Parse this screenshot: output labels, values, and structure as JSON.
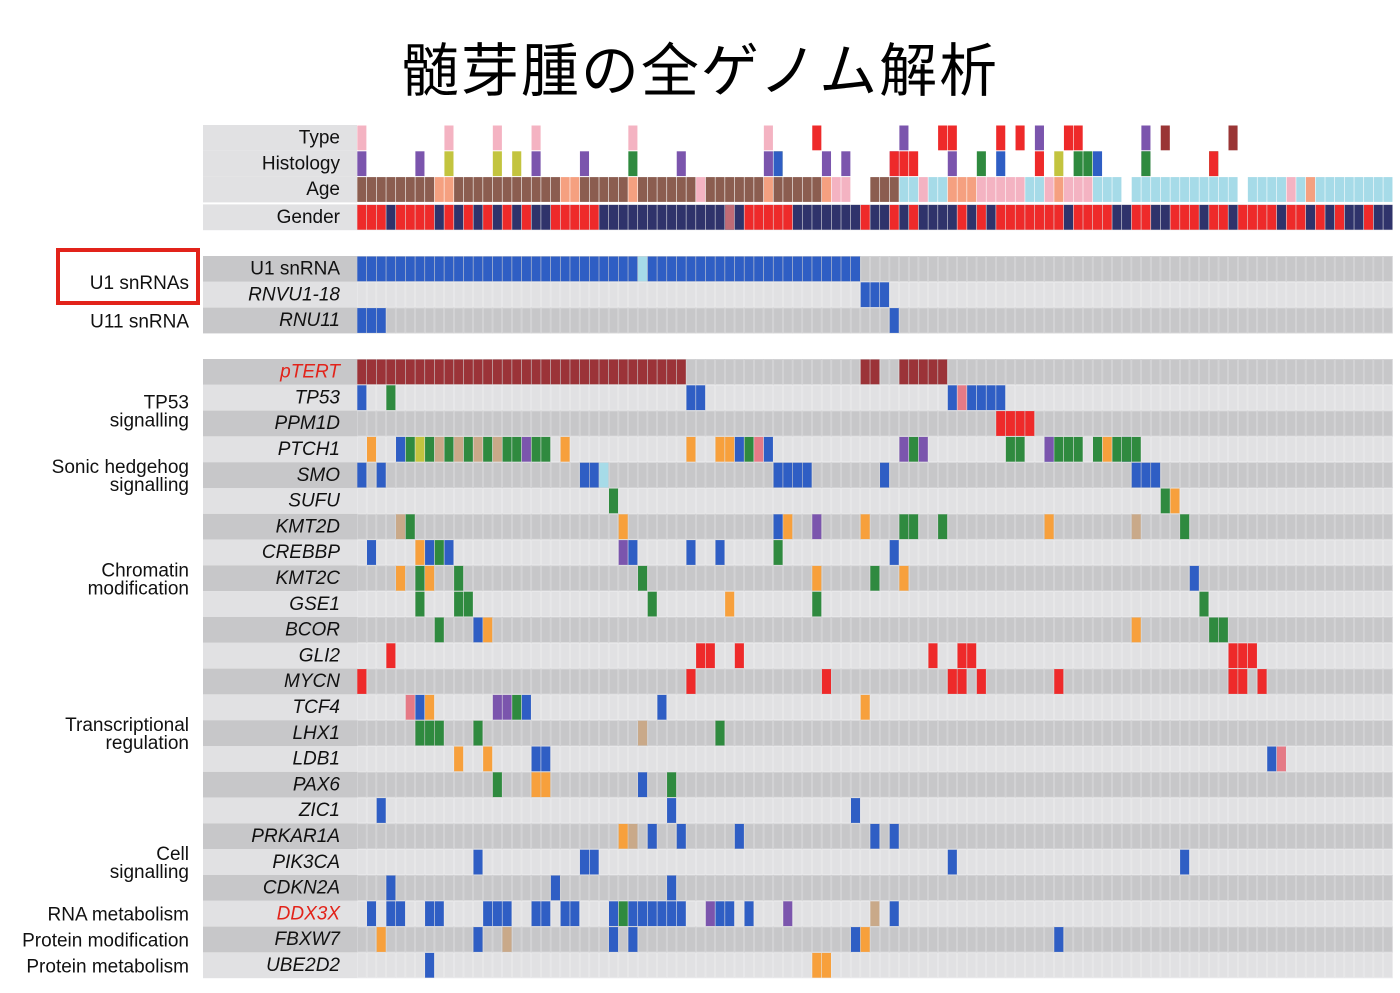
{
  "title": "髄芽腫の全ゲノム解析",
  "chart_data": {
    "type": "heatmap",
    "subtype": "oncoprint",
    "n_samples": 107,
    "clinical_tracks": [
      {
        "label": "Type"
      },
      {
        "label": "Histology"
      },
      {
        "label": "Age"
      },
      {
        "label": "Gender"
      }
    ],
    "sections": [
      {
        "groups": [
          {
            "label": "U1 snRNAs",
            "highlight": true,
            "rows": [
              "U1 snRNA",
              "RNVU1-18"
            ]
          },
          {
            "label": "U11 snRNA",
            "rows": [
              "RNU11"
            ]
          }
        ]
      },
      {
        "groups": [
          {
            "label": "",
            "rows": [
              "pTERT"
            ]
          },
          {
            "label": "TP53 signalling",
            "rows": [
              "TP53",
              "PPM1D"
            ]
          },
          {
            "label": "Sonic hedgehog signalling",
            "rows": [
              "PTCH1",
              "SMO",
              "SUFU"
            ]
          },
          {
            "label": "Chromatin modification",
            "rows": [
              "KMT2D",
              "CREBBP",
              "KMT2C",
              "GSE1",
              "BCOR"
            ]
          },
          {
            "label": "Transcriptional regulation",
            "rows": [
              "GLI2",
              "MYCN",
              "TCF4",
              "LHX1",
              "LDB1",
              "PAX6",
              "ZIC1"
            ]
          },
          {
            "label": "Cell signalling",
            "rows": [
              "PRKAR1A",
              "PIK3CA",
              "CDKN2A"
            ]
          },
          {
            "label": "RNA metabolism",
            "rows": [
              "DDX3X"
            ]
          },
          {
            "label": "Protein modification",
            "rows": [
              "FBXW7"
            ]
          },
          {
            "label": "Protein metabolism",
            "rows": [
              "UBE2D2"
            ]
          }
        ]
      }
    ],
    "row_labels": {
      "U1 snRNA": "U1 snRNA",
      "RNVU1-18": "RNVU1-18",
      "RNU11": "RNU11",
      "pTERT": "pTERT",
      "TP53": "TP53",
      "PPM1D": "PPM1D",
      "PTCH1": "PTCH1",
      "SMO": "SMO",
      "SUFU": "SUFU",
      "KMT2D": "KMT2D",
      "CREBBP": "CREBBP",
      "KMT2C": "KMT2C",
      "GSE1": "GSE1",
      "BCOR": "BCOR",
      "GLI2": "GLI2",
      "MYCN": "MYCN",
      "TCF4": "TCF4",
      "LHX1": "LHX1",
      "LDB1": "LDB1",
      "PAX6": "PAX6",
      "ZIC1": "ZIC1",
      "PRKAR1A": "PRKAR1A",
      "PIK3CA": "PIK3CA",
      "CDKN2A": "CDKN2A",
      "DDX3X": "DDX3X",
      "FBXW7": "FBXW7",
      "UBE2D2": "UBE2D2"
    },
    "highlighted_genes": [
      "pTERT",
      "DDX3X"
    ],
    "colors": {
      "blue": "#2f5ec4",
      "lightblue": "#a6dbe8",
      "maroon": "#9b3338",
      "red": "#ee2a2a",
      "green": "#2f8a3f",
      "orange": "#f7a03c",
      "purple": "#7b55ad",
      "tan": "#c9a989",
      "pink": "#e57a86",
      "lightpink": "#f4b3c2",
      "olive": "#c3c43f",
      "darkred": "#9a3535",
      "brown": "#8b5d50",
      "salmon": "#f5a080",
      "navy": "#2f336b",
      "mauve": "#c06b76",
      "empty_light": "#e1e1e3",
      "empty_dark": "#c7c7c9",
      "highlight_box": "#e2231a",
      "gene_red": "#e2231a"
    },
    "alterations": {
      "U1 snRNA": {
        "blue": [
          "0-28",
          "30-51"
        ],
        "lightblue": [
          "29"
        ]
      },
      "RNVU1-18": {
        "blue": [
          "52-54"
        ]
      },
      "RNU11": {
        "blue": [
          "0-2",
          "55"
        ]
      },
      "pTERT": {
        "maroon": [
          "0-33",
          "52-53",
          "56-60"
        ]
      },
      "TP53": {
        "blue": [
          "0",
          "34-35",
          "61",
          "63-66"
        ],
        "green": [
          "3"
        ],
        "pink": [
          "62"
        ]
      },
      "PPM1D": {
        "red": [
          "66-69"
        ]
      },
      "PTCH1": {
        "orange": [
          "1",
          "21",
          "34",
          "37-38",
          "77"
        ],
        "blue": [
          "4",
          "39",
          "42",
          "71",
          "79"
        ],
        "green": [
          "5",
          "7",
          "9",
          "11",
          "13",
          "15-16",
          "18-19",
          "40",
          "57",
          "67-68",
          "72-74",
          "76",
          "78-80"
        ],
        "olive": [
          "6"
        ],
        "tan": [
          "8",
          "10",
          "12",
          "14"
        ],
        "purple": [
          "17",
          "56",
          "58",
          "71"
        ],
        "pink": [
          "41"
        ]
      },
      "SMO": {
        "blue": [
          "0",
          "2",
          "23-24",
          "43-46",
          "54",
          "80-82"
        ],
        "lightblue": [
          "25"
        ]
      },
      "SUFU": {
        "green": [
          "26",
          "83"
        ],
        "orange": [
          "84"
        ]
      },
      "KMT2D": {
        "tan": [
          "4",
          "80"
        ],
        "green": [
          "5",
          "56-57",
          "60",
          "85"
        ],
        "orange": [
          "27",
          "44",
          "52",
          "71"
        ],
        "blue": [
          "43"
        ],
        "purple": [
          "47"
        ]
      },
      "CREBBP": {
        "blue": [
          "1",
          "7",
          "9",
          "28",
          "34",
          "37",
          "55"
        ],
        "orange": [
          "6"
        ],
        "green": [
          "8",
          "43"
        ],
        "purple": [
          "27"
        ]
      },
      "KMT2C": {
        "orange": [
          "4",
          "7",
          "47",
          "56"
        ],
        "green": [
          "6",
          "10",
          "29",
          "53"
        ],
        "blue": [
          "86"
        ]
      },
      "GSE1": {
        "green": [
          "6",
          "10-11",
          "30",
          "47",
          "87"
        ],
        "orange": [
          "38"
        ]
      },
      "BCOR": {
        "green": [
          "8",
          "88-89"
        ],
        "blue": [
          "12"
        ],
        "orange": [
          "13",
          "80"
        ]
      },
      "GLI2": {
        "red": [
          "3",
          "35-36",
          "39",
          "59",
          "62-63",
          "90-92"
        ]
      },
      "MYCN": {
        "red": [
          "0",
          "34",
          "48",
          "61-62",
          "64",
          "72",
          "90-91",
          "93"
        ]
      },
      "TCF4": {
        "pink": [
          "5"
        ],
        "blue": [
          "6",
          "17",
          "31"
        ],
        "orange": [
          "7",
          "52"
        ],
        "purple": [
          "14-15"
        ],
        "green": [
          "16"
        ]
      },
      "LHX1": {
        "green": [
          "6-8",
          "12",
          "37"
        ],
        "tan": [
          "29"
        ]
      },
      "LDB1": {
        "orange": [
          "10",
          "13"
        ],
        "blue": [
          "18-19",
          "94"
        ],
        "pink": [
          "95"
        ]
      },
      "PAX6": {
        "green": [
          "14",
          "32"
        ],
        "orange": [
          "18-19"
        ],
        "blue": [
          "29"
        ]
      },
      "ZIC1": {
        "blue": [
          "2",
          "32",
          "51"
        ]
      },
      "PRKAR1A": {
        "orange": [
          "27"
        ],
        "tan": [
          "28"
        ],
        "blue": [
          "30",
          "33",
          "39",
          "53",
          "55"
        ]
      },
      "PIK3CA": {
        "blue": [
          "12",
          "23-24",
          "61",
          "85"
        ]
      },
      "CDKN2A": {
        "blue": [
          "3",
          "20",
          "32"
        ]
      },
      "DDX3X": {
        "blue": [
          "1",
          "3-4",
          "7-8",
          "13-15",
          "18-19",
          "21-22",
          "26",
          "28-33",
          "37-38",
          "40",
          "55"
        ],
        "green": [
          "27"
        ],
        "purple": [
          "36",
          "44"
        ],
        "tan": [
          "53"
        ]
      },
      "FBXW7": {
        "orange": [
          "2",
          "52"
        ],
        "blue": [
          "12",
          "26",
          "28",
          "51",
          "72"
        ],
        "tan": [
          "15"
        ]
      },
      "UBE2D2": {
        "blue": [
          "7"
        ],
        "orange": [
          "47-48"
        ]
      }
    },
    "clinical_values": {
      "Type": {
        "lightpink": [
          "0",
          "9",
          "14",
          "18",
          "28",
          "42"
        ],
        "red": [
          "47",
          "60-61",
          "66",
          "68",
          "73-74"
        ],
        "purple": [
          "56",
          "70",
          "81"
        ],
        "darkred": [
          "83",
          "90"
        ]
      },
      "Histology": {
        "purple": [
          "0",
          "6",
          "18",
          "23",
          "33",
          "42",
          "48",
          "50",
          "55",
          "61",
          "81"
        ],
        "olive": [
          "9",
          "14",
          "16",
          "43",
          "72"
        ],
        "green": [
          "28",
          "64",
          "74-75",
          "81",
          "88"
        ],
        "red": [
          "55-57",
          "70",
          "88"
        ],
        "blue": [
          "43",
          "66",
          "76"
        ]
      },
      "Age": {
        "brown": [
          "0-7",
          "10-20",
          "23-27",
          "29-34",
          "36-41",
          "43-47",
          "53-55"
        ],
        "salmon": [
          "8-9",
          "21-22",
          "28",
          "42",
          "48",
          "61-63",
          "72",
          "98"
        ],
        "lightpink": [
          "35",
          "49-50",
          "58",
          "64-68",
          "71",
          "73-75",
          "96"
        ],
        "lightblue": [
          "56-57",
          "59-60",
          "69-70",
          "76-78",
          "80-90",
          "92-95",
          "97",
          "99-106"
        ]
      },
      "Gender": {
        "red": [
          "0-2",
          "4-7",
          "9",
          "11",
          "13",
          "15",
          "17",
          "20-24",
          "40-44",
          "52",
          "55",
          "57",
          "62",
          "64",
          "66-72",
          "74-77",
          "80-81",
          "84-86",
          "88-89",
          "91-94",
          "96-97",
          "99",
          "101",
          "104"
        ],
        "navy": [
          "3",
          "8",
          "10",
          "12",
          "14",
          "16",
          "18-19",
          "25-39",
          "45-51",
          "53-54",
          "56",
          "58-61",
          "63",
          "65",
          "73",
          "78-79",
          "82-83",
          "87",
          "90",
          "95",
          "98",
          "100",
          "102-103",
          "105-106"
        ],
        "mauve": [
          "38"
        ]
      }
    }
  }
}
